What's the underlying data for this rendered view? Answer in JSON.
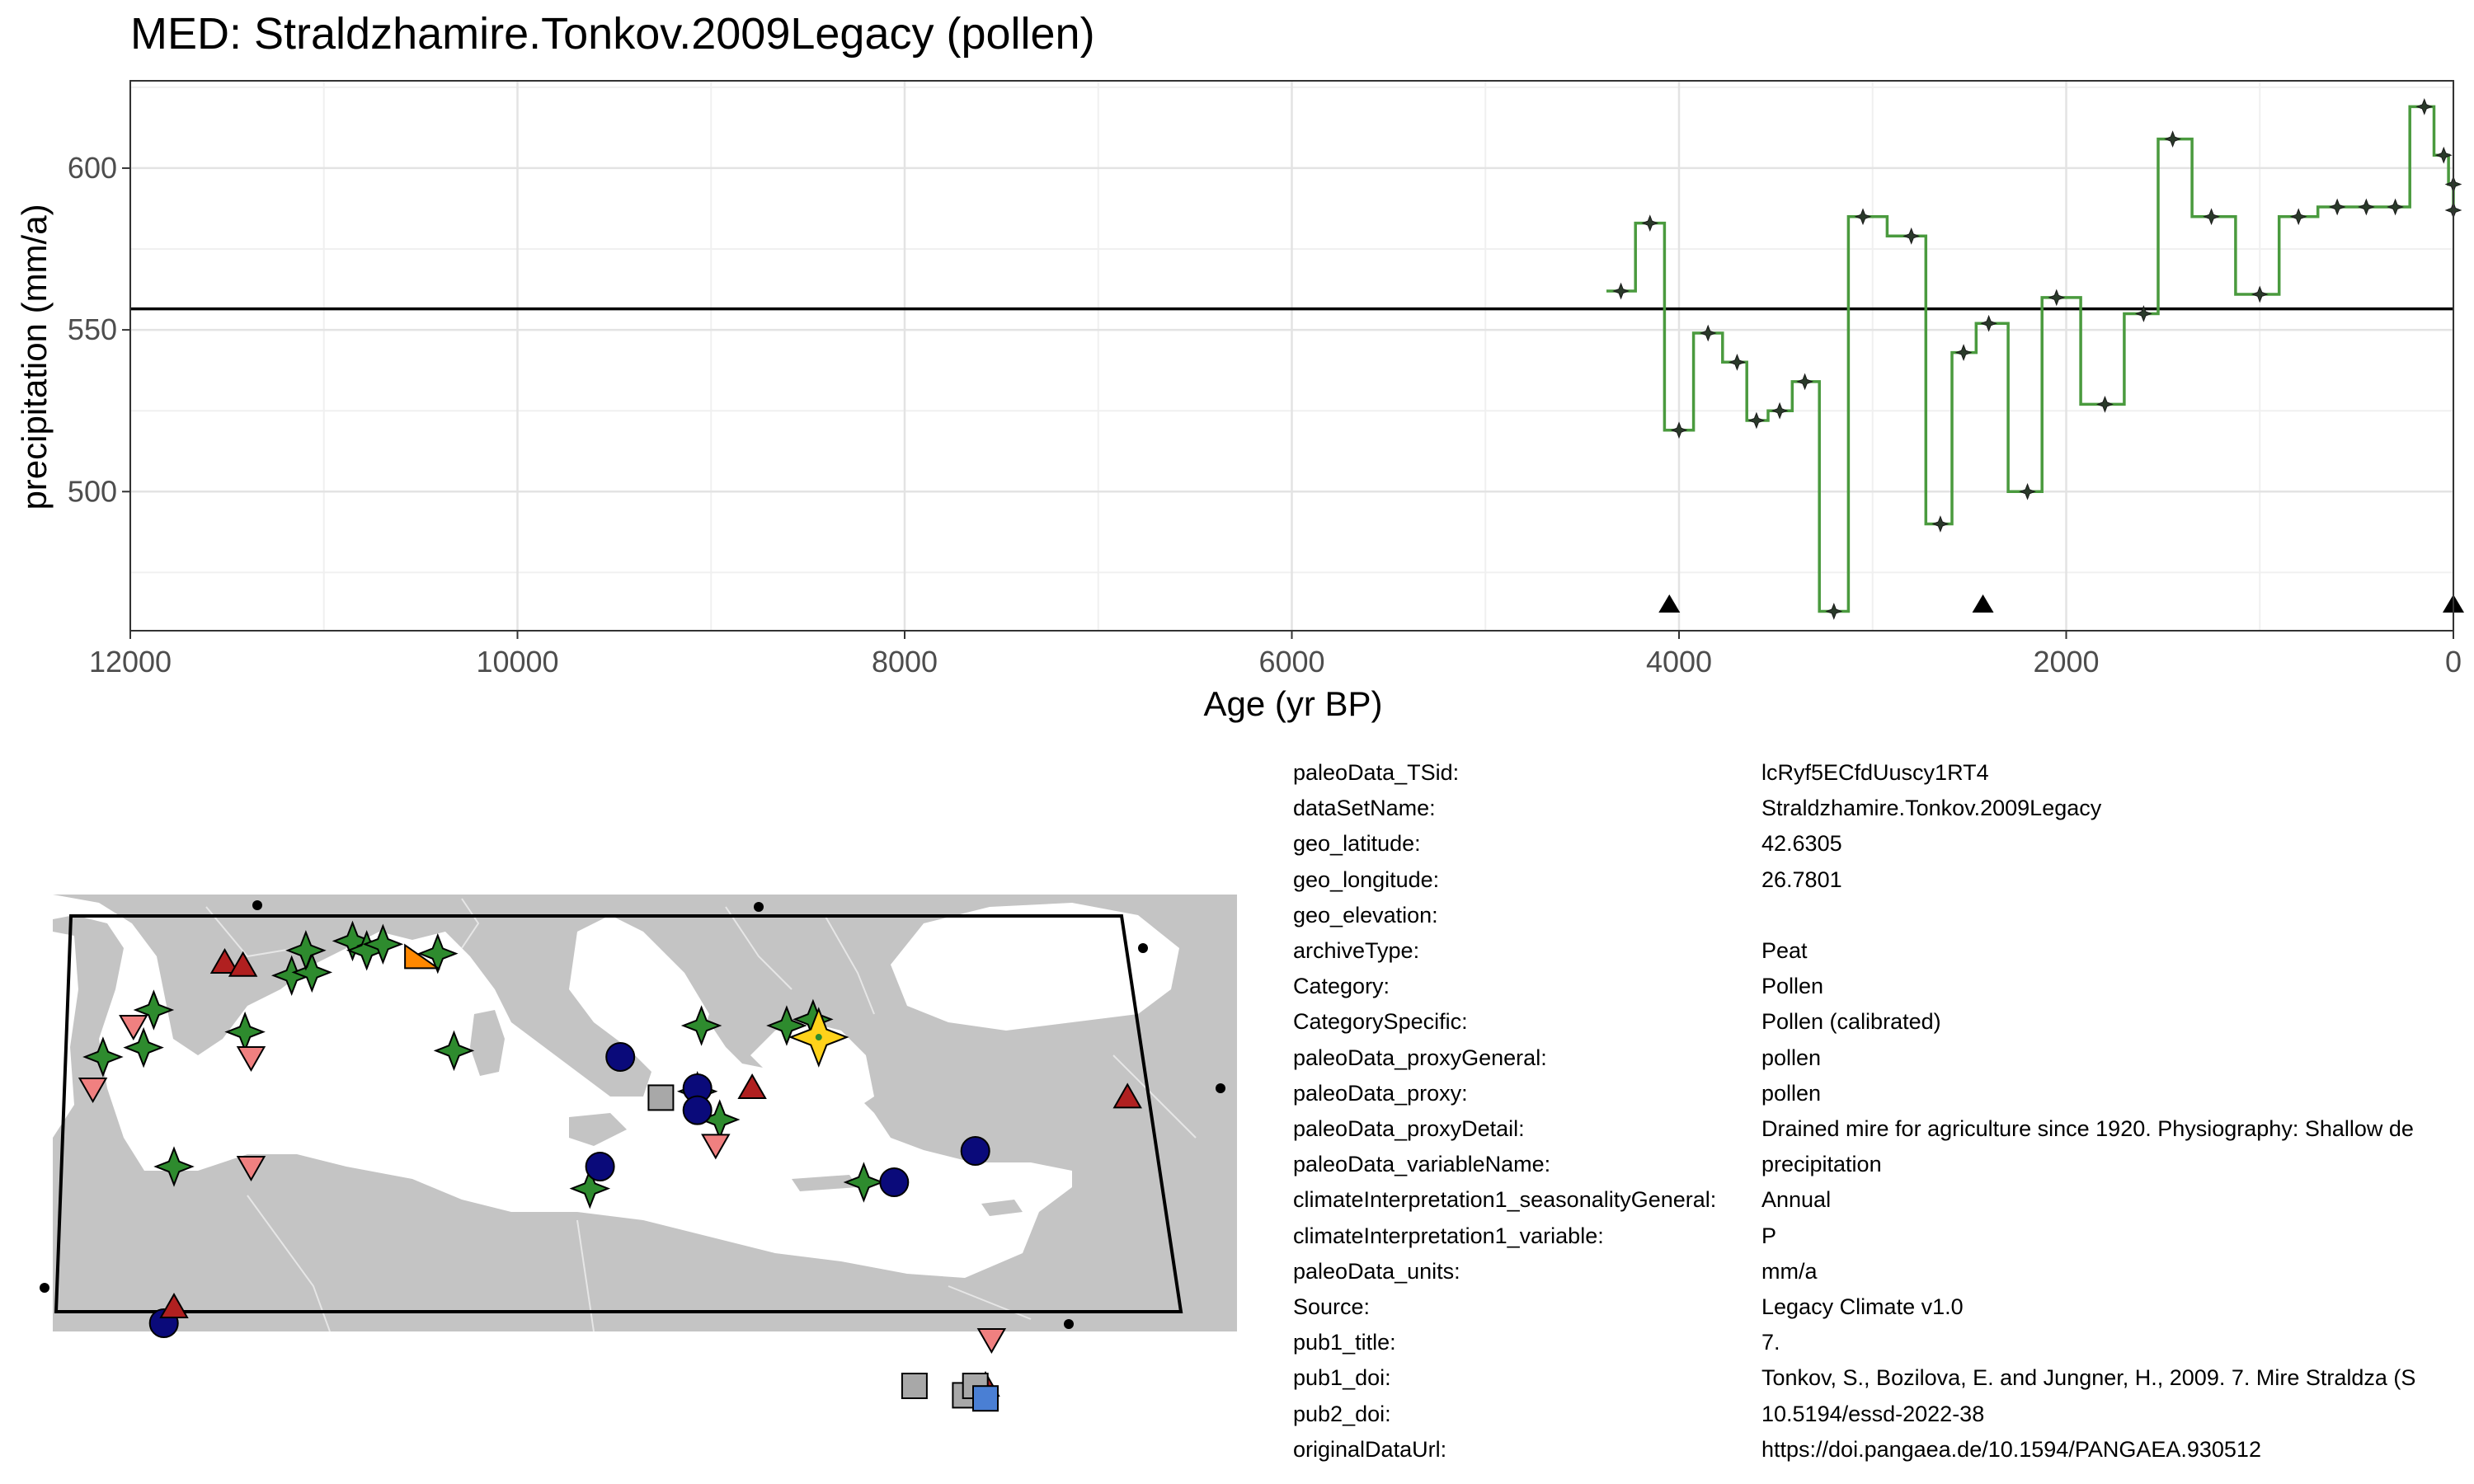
{
  "chart_data": {
    "type": "line",
    "title": "MED: Straldzhamire.Tonkov.2009Legacy (pollen)",
    "xlabel": "Age (yr BP)",
    "ylabel": "precipitation (mm/a)",
    "xlim": [
      12000,
      0
    ],
    "ylim": [
      457,
      627
    ],
    "x_ticks": [
      12000,
      10000,
      8000,
      6000,
      4000,
      2000,
      0
    ],
    "y_ticks": [
      500,
      550,
      600
    ],
    "grid": true,
    "reference_line": 556.5,
    "series": [
      {
        "x": [
          4300,
          4150,
          4000,
          3850,
          3700,
          3600,
          3480,
          3350,
          3200,
          3050,
          2800,
          2650,
          2530,
          2400,
          2200,
          2050,
          1800,
          1600,
          1450,
          1250,
          1000,
          800,
          600,
          450,
          300,
          150,
          50,
          0,
          0
        ],
        "y": [
          562,
          583,
          519,
          549,
          540,
          522,
          525,
          534,
          463,
          585,
          579,
          490,
          543,
          552,
          500,
          560,
          527,
          555,
          609,
          585,
          561,
          585,
          588,
          588,
          588,
          619,
          604,
          595,
          587
        ],
        "color": "#4a9a3e"
      }
    ],
    "chronology_markers_x": [
      4050,
      2430,
      0
    ]
  },
  "metadata": [
    {
      "key": "paleoData_TSid:",
      "value": "lcRyf5ECfdUuscy1RT4"
    },
    {
      "key": "dataSetName:",
      "value": "Straldzhamire.Tonkov.2009Legacy"
    },
    {
      "key": "geo_latitude:",
      "value": "42.6305"
    },
    {
      "key": "geo_longitude:",
      "value": "26.7801"
    },
    {
      "key": "geo_elevation:",
      "value": ""
    },
    {
      "key": "archiveType:",
      "value": "Peat"
    },
    {
      "key": "Category:",
      "value": "Pollen"
    },
    {
      "key": "CategorySpecific:",
      "value": "Pollen (calibrated)"
    },
    {
      "key": "paleoData_proxyGeneral:",
      "value": "pollen"
    },
    {
      "key": "paleoData_proxy:",
      "value": "pollen"
    },
    {
      "key": "paleoData_proxyDetail:",
      "value": "Drained mire for agriculture since 1920. Physiography: Shallow de"
    },
    {
      "key": "paleoData_variableName:",
      "value": "precipitation"
    },
    {
      "key": "climateInterpretation1_seasonalityGeneral:",
      "value": "Annual"
    },
    {
      "key": "climateInterpretation1_variable:",
      "value": "P"
    },
    {
      "key": "paleoData_units:",
      "value": "mm/a"
    },
    {
      "key": "Source:",
      "value": "Legacy Climate v1.0"
    },
    {
      "key": "pub1_title:",
      "value": "7."
    },
    {
      "key": "pub1_doi:",
      "value": "Tonkov, S., Bozilova, E. and Jungner, H., 2009. 7. Mire Straldza (S"
    },
    {
      "key": "pub2_doi:",
      "value": "10.5194/essd-2022-38"
    },
    {
      "key": "originalDataUrl:",
      "value": "https://doi.pangaea.de/10.1594/PANGAEA.930512"
    }
  ],
  "map": {
    "land_color": "#c4c4c4",
    "sites": [
      {
        "shape": "star",
        "color": "#2e8b2e",
        "lon": -8.5,
        "lat": 42.0
      },
      {
        "shape": "star",
        "color": "#2e8b2e",
        "lon": -6.5,
        "lat": 42.3
      },
      {
        "shape": "star",
        "color": "#2e8b2e",
        "lon": -6.0,
        "lat": 43.5
      },
      {
        "shape": "star",
        "color": "#2e8b2e",
        "lon": -5.0,
        "lat": 38.5
      },
      {
        "shape": "star",
        "color": "#2e8b2e",
        "lon": -1.5,
        "lat": 42.8
      },
      {
        "shape": "star",
        "color": "#2e8b2e",
        "lon": 0.8,
        "lat": 44.6
      },
      {
        "shape": "star",
        "color": "#2e8b2e",
        "lon": 1.8,
        "lat": 44.7
      },
      {
        "shape": "star",
        "color": "#2e8b2e",
        "lon": 1.5,
        "lat": 45.4
      },
      {
        "shape": "star",
        "color": "#2e8b2e",
        "lon": 3.8,
        "lat": 45.7
      },
      {
        "shape": "star",
        "color": "#2e8b2e",
        "lon": 4.5,
        "lat": 45.4
      },
      {
        "shape": "star",
        "color": "#2e8b2e",
        "lon": 5.3,
        "lat": 45.6
      },
      {
        "shape": "star",
        "color": "#2e8b2e",
        "lon": 8.0,
        "lat": 45.3
      },
      {
        "shape": "star",
        "color": "#2e8b2e",
        "lon": 8.8,
        "lat": 42.2
      },
      {
        "shape": "star",
        "color": "#2e8b2e",
        "lon": 15.5,
        "lat": 37.8
      },
      {
        "shape": "star",
        "color": "#2e8b2e",
        "lon": 21.0,
        "lat": 43.0
      },
      {
        "shape": "star",
        "color": "#2e8b2e",
        "lon": 20.8,
        "lat": 40.9
      },
      {
        "shape": "star",
        "color": "#2e8b2e",
        "lon": 21.9,
        "lat": 40.0
      },
      {
        "shape": "star",
        "color": "#2e8b2e",
        "lon": 25.2,
        "lat": 43.0
      },
      {
        "shape": "star",
        "color": "#2e8b2e",
        "lon": 26.5,
        "lat": 43.2
      },
      {
        "shape": "star",
        "color": "#2e8b2e",
        "lon": 29.0,
        "lat": 38.0
      },
      {
        "shape": "star",
        "color": "#ffd21a",
        "lon": 26.78,
        "lat": 42.63
      },
      {
        "shape": "circle",
        "color": "#0a0a7a",
        "lon": 17.0,
        "lat": 42.0
      },
      {
        "shape": "circle",
        "color": "#0a0a7a",
        "lon": 20.8,
        "lat": 41.0
      },
      {
        "shape": "circle",
        "color": "#0a0a7a",
        "lon": 20.8,
        "lat": 40.3
      },
      {
        "shape": "circle",
        "color": "#0a0a7a",
        "lon": 16.0,
        "lat": 38.5
      },
      {
        "shape": "circle",
        "color": "#0a0a7a",
        "lon": 30.5,
        "lat": 38.0
      },
      {
        "shape": "circle",
        "color": "#0a0a7a",
        "lon": 34.5,
        "lat": 39.0
      },
      {
        "shape": "circle",
        "color": "#0a0a7a",
        "lon": -5.5,
        "lat": 33.5
      },
      {
        "shape": "triangle",
        "color": "#b02020",
        "lon": -2.5,
        "lat": 45.0
      },
      {
        "shape": "triangle",
        "color": "#b02020",
        "lon": -1.6,
        "lat": 44.9
      },
      {
        "shape": "triangle",
        "color": "#b02020",
        "lon": 23.5,
        "lat": 41.0
      },
      {
        "shape": "triangle",
        "color": "#b02020",
        "lon": 42.0,
        "lat": 40.7
      },
      {
        "shape": "triangle",
        "color": "#b02020",
        "lon": -5.0,
        "lat": 34.0
      },
      {
        "shape": "triangle",
        "color": "#b02020",
        "lon": 35.0,
        "lat": 31.5
      },
      {
        "shape": "inv-triangle",
        "color": "#f08080",
        "lon": -7.0,
        "lat": 43.0
      },
      {
        "shape": "inv-triangle",
        "color": "#f08080",
        "lon": -9.0,
        "lat": 41.0
      },
      {
        "shape": "inv-triangle",
        "color": "#f08080",
        "lon": -1.2,
        "lat": 42.0
      },
      {
        "shape": "inv-triangle",
        "color": "#f08080",
        "lon": -1.2,
        "lat": 38.5
      },
      {
        "shape": "inv-triangle",
        "color": "#f08080",
        "lon": 21.7,
        "lat": 39.2
      },
      {
        "shape": "inv-triangle",
        "color": "#f08080",
        "lon": 35.3,
        "lat": 33.0
      },
      {
        "shape": "square",
        "color": "#a8a8a8",
        "lon": 19.0,
        "lat": 40.7
      },
      {
        "shape": "square",
        "color": "#a8a8a8",
        "lon": 31.5,
        "lat": 31.5
      },
      {
        "shape": "square",
        "color": "#a8a8a8",
        "lon": 34.0,
        "lat": 31.2
      },
      {
        "shape": "square",
        "color": "#a8a8a8",
        "lon": 34.5,
        "lat": 31.5
      },
      {
        "shape": "square",
        "color": "#4a7fd4",
        "lon": 35.0,
        "lat": 31.1
      },
      {
        "shape": "tri-square",
        "color": "#ff8800",
        "lon": 7.2,
        "lat": 45.2
      }
    ]
  }
}
